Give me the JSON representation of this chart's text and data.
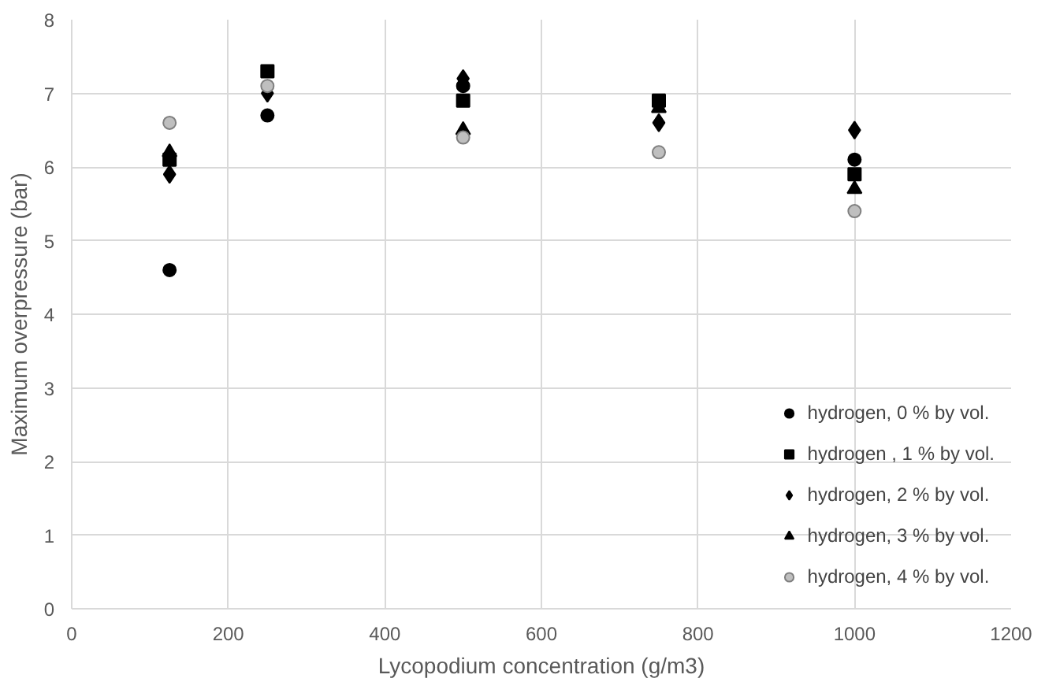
{
  "chart_data": {
    "type": "scatter",
    "xlabel": "Lycopodium concentration (g/m3)",
    "ylabel": "Maximum overpressure (bar)",
    "x": [
      125,
      250,
      500,
      750,
      1000
    ],
    "series": [
      {
        "name": "hydrogen, 0 % by vol.",
        "color": "#000000",
        "marker": "circle",
        "values": [
          4.6,
          6.7,
          7.1,
          null,
          6.1
        ]
      },
      {
        "name": "hydrogen , 1 % by vol.",
        "color": "#000000",
        "marker": "square",
        "values": [
          6.1,
          7.3,
          6.9,
          6.9,
          5.9
        ]
      },
      {
        "name": "hydrogen, 2 % by vol.",
        "color": "#000000",
        "marker": "diamond",
        "values": [
          5.9,
          7.0,
          7.2,
          6.6,
          6.5
        ]
      },
      {
        "name": "hydrogen, 3 % by vol.",
        "color": "#000000",
        "marker": "triangle",
        "values": [
          6.2,
          null,
          6.5,
          6.8,
          5.7
        ]
      },
      {
        "name": "hydrogen, 4 % by vol.",
        "color": "#bfbfbf",
        "marker": "circle",
        "values": [
          6.6,
          7.1,
          6.4,
          6.2,
          5.4
        ]
      }
    ],
    "xlim": [
      0,
      1200
    ],
    "xticks": [
      0,
      200,
      400,
      600,
      800,
      1000,
      1200
    ],
    "ylim": [
      0,
      8
    ],
    "yticks": [
      0,
      1,
      2,
      3,
      4,
      5,
      6,
      7,
      8
    ],
    "grid": true,
    "legend": "bottom right"
  }
}
